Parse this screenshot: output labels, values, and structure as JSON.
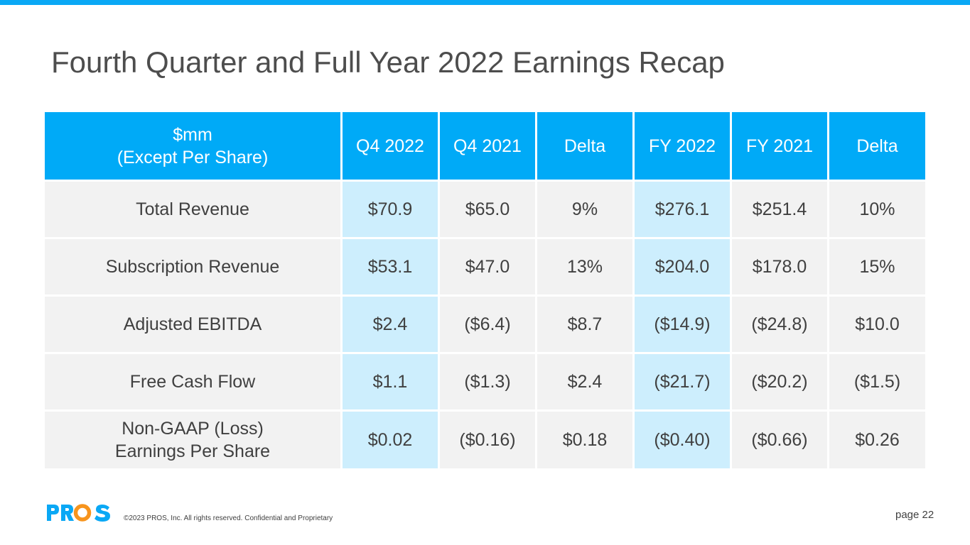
{
  "slide": {
    "title": "Fourth Quarter and Full Year 2022 Earnings Recap",
    "accent_color": "#0aa8f5"
  },
  "table": {
    "header": {
      "label_line1": "$mm",
      "label_line2": "(Except Per Share)",
      "columns": [
        "Q4 2022",
        "Q4 2021",
        "Delta",
        "FY 2022",
        "FY 2021",
        "Delta"
      ]
    },
    "rows": [
      {
        "label_line1": "Total Revenue",
        "label_line2": "",
        "values": [
          "$70.9",
          "$65.0",
          "9%",
          "$276.1",
          "$251.4",
          "10%"
        ]
      },
      {
        "label_line1": "Subscription Revenue",
        "label_line2": "",
        "values": [
          "$53.1",
          "$47.0",
          "13%",
          "$204.0",
          "$178.0",
          "15%"
        ]
      },
      {
        "label_line1": "Adjusted EBITDA",
        "label_line2": "",
        "values": [
          "$2.4",
          "($6.4)",
          "$8.7",
          "($14.9)",
          "($24.8)",
          "$10.0"
        ]
      },
      {
        "label_line1": "Free Cash Flow",
        "label_line2": "",
        "values": [
          "$1.1",
          "($1.3)",
          "$2.4",
          "($21.7)",
          "($20.2)",
          "($1.5)"
        ]
      },
      {
        "label_line1": "Non-GAAP (Loss)",
        "label_line2": "Earnings Per Share",
        "values": [
          "$0.02",
          "($0.16)",
          "$0.18",
          "($0.40)",
          "($0.66)",
          "$0.26"
        ]
      }
    ]
  },
  "footer": {
    "logo_text": "PROS",
    "copyright": "©2023 PROS, Inc. All rights reserved. Confidential and Proprietary",
    "page": "page 22"
  }
}
